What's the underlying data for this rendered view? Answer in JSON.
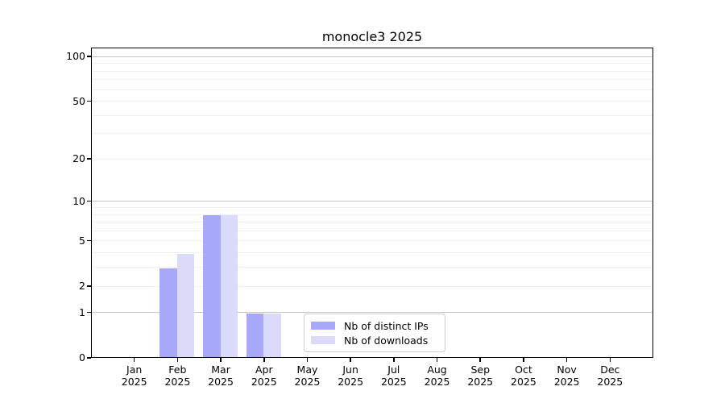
{
  "header": {
    "title": "monocle3 2025"
  },
  "legend": {
    "items": [
      {
        "label": "Nb of distinct IPs",
        "color": "#a8a8fa"
      },
      {
        "label": "Nb of downloads",
        "color": "#dadafb"
      }
    ],
    "position": "lower center"
  },
  "chart_data": {
    "type": "bar",
    "title": "monocle3 2025",
    "categories": [
      "Jan",
      "Feb",
      "Mar",
      "Apr",
      "May",
      "Jun",
      "Jul",
      "Aug",
      "Sep",
      "Oct",
      "Nov",
      "Dec"
    ],
    "x_tick_year": "2025",
    "series": [
      {
        "name": "Nb of distinct IPs",
        "color": "#a8a8fa",
        "values": [
          0,
          3,
          8,
          1,
          0,
          0,
          0,
          0,
          0,
          0,
          0,
          0
        ]
      },
      {
        "name": "Nb of downloads",
        "color": "#dadafb",
        "values": [
          0,
          4,
          8,
          1,
          0,
          0,
          0,
          0,
          0,
          0,
          0,
          0
        ]
      }
    ],
    "xlabel": "",
    "ylabel": "",
    "y_scale": "log10(1+x)",
    "ylim": [
      0,
      115
    ],
    "y_tick_labels": [
      0,
      1,
      2,
      5,
      10,
      20,
      50,
      100
    ],
    "major_gridlines": [
      1,
      10,
      100
    ],
    "minor_gridlines": [
      2,
      3,
      4,
      5,
      6,
      7,
      8,
      9,
      20,
      30,
      40,
      50,
      60,
      70,
      80,
      90
    ],
    "grid": true,
    "legend_position": "lower center",
    "colors": {
      "major_grid": "#c4c4c4",
      "minor_grid": "#efefef",
      "axis": "#000000"
    }
  }
}
